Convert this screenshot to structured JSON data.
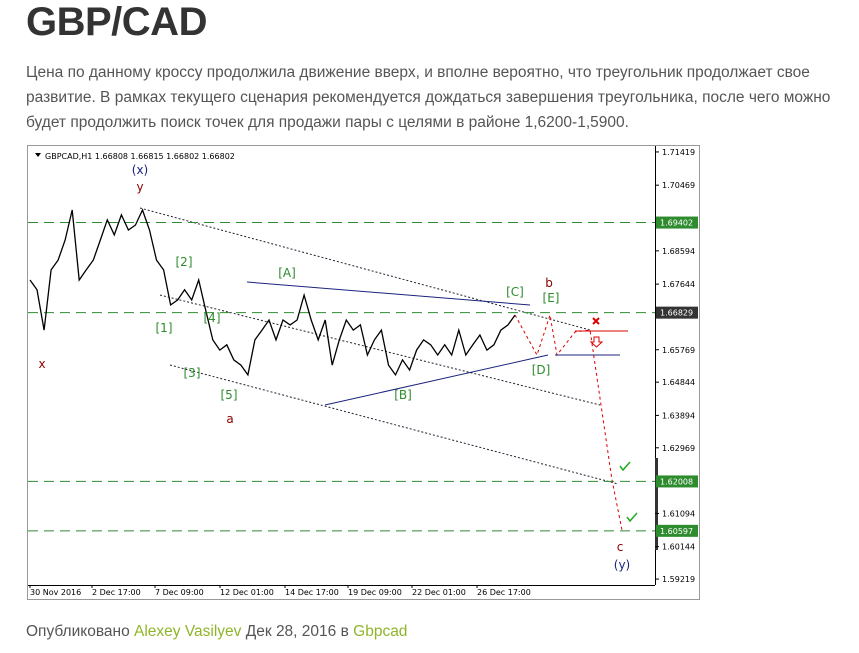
{
  "header": {
    "title": "GBP/CAD"
  },
  "body": {
    "paragraph_lines": [
      "Цена по данному кроссу продолжила движение вверх, и вполне вероятно, что треугольник продолжает свое",
      "развитие.  В рамках текущего сценария рекомендуется дождаться завершения треугольника, после чего можно",
      "будет продолжить поиск точек для продажи пары с целями в районе 1,6200-1,5900."
    ]
  },
  "chart": {
    "symbol_info": "GBPCAD,H1  1.66808 1.66815 1.66802 1.66802",
    "ylim": [
      1.5905,
      1.7156
    ],
    "yticks": [
      1.71419,
      1.70469,
      1.68594,
      1.67644,
      1.65769,
      1.64844,
      1.63894,
      1.62969,
      1.61094,
      1.60144,
      1.59219
    ],
    "levels": [
      1.69402,
      1.62008,
      1.60597
    ],
    "current_price": 1.66829,
    "xtick_labels": [
      "30 Nov 2016",
      "2 Dec 17:00",
      "7 Dec 09:00",
      "12 Dec 01:00",
      "14 Dec 17:00",
      "19 Dec 09:00",
      "22 Dec 01:00",
      "26 Dec 17:00"
    ],
    "price": {
      "color": "#000000",
      "values": [
        1.6776,
        1.6748,
        1.6633,
        1.6805,
        1.6833,
        1.689,
        1.6976,
        1.6776,
        1.6805,
        1.6833,
        1.689,
        1.6948,
        1.6905,
        1.6962,
        1.6919,
        1.6933,
        1.6976,
        1.6919,
        1.6833,
        1.6805,
        1.6705,
        1.6719,
        1.6748,
        1.6719,
        1.6776,
        1.669,
        1.6605,
        1.6576,
        1.6591,
        1.6548,
        1.6533,
        1.6505,
        1.6605,
        1.6633,
        1.6662,
        1.6605,
        1.6662,
        1.6648,
        1.6662,
        1.6733,
        1.6662,
        1.6605,
        1.6662,
        1.6533,
        1.6605,
        1.6662,
        1.6633,
        1.6648,
        1.6562,
        1.6605,
        1.6633,
        1.6533,
        1.6505,
        1.6548,
        1.6519,
        1.6576,
        1.6605,
        1.6591,
        1.6562,
        1.6591,
        1.6562,
        1.6633,
        1.6562,
        1.6591,
        1.6619,
        1.6576,
        1.6591,
        1.6633,
        1.6648,
        1.6676
      ]
    },
    "wave_labels": [
      "(x)",
      "y",
      "x",
      "[1]",
      "[2]",
      "[3]",
      "[4]",
      "[5]",
      "a",
      "[A]",
      "[B]",
      "[C]",
      "[D]",
      "[E]",
      "b",
      "c",
      "(y)"
    ]
  },
  "footer": {
    "prefix": "Опубликовано",
    "author": "Alexey Vasilyev",
    "date_text": "Дек 28, 2016 в",
    "category": "Gbpcad"
  }
}
